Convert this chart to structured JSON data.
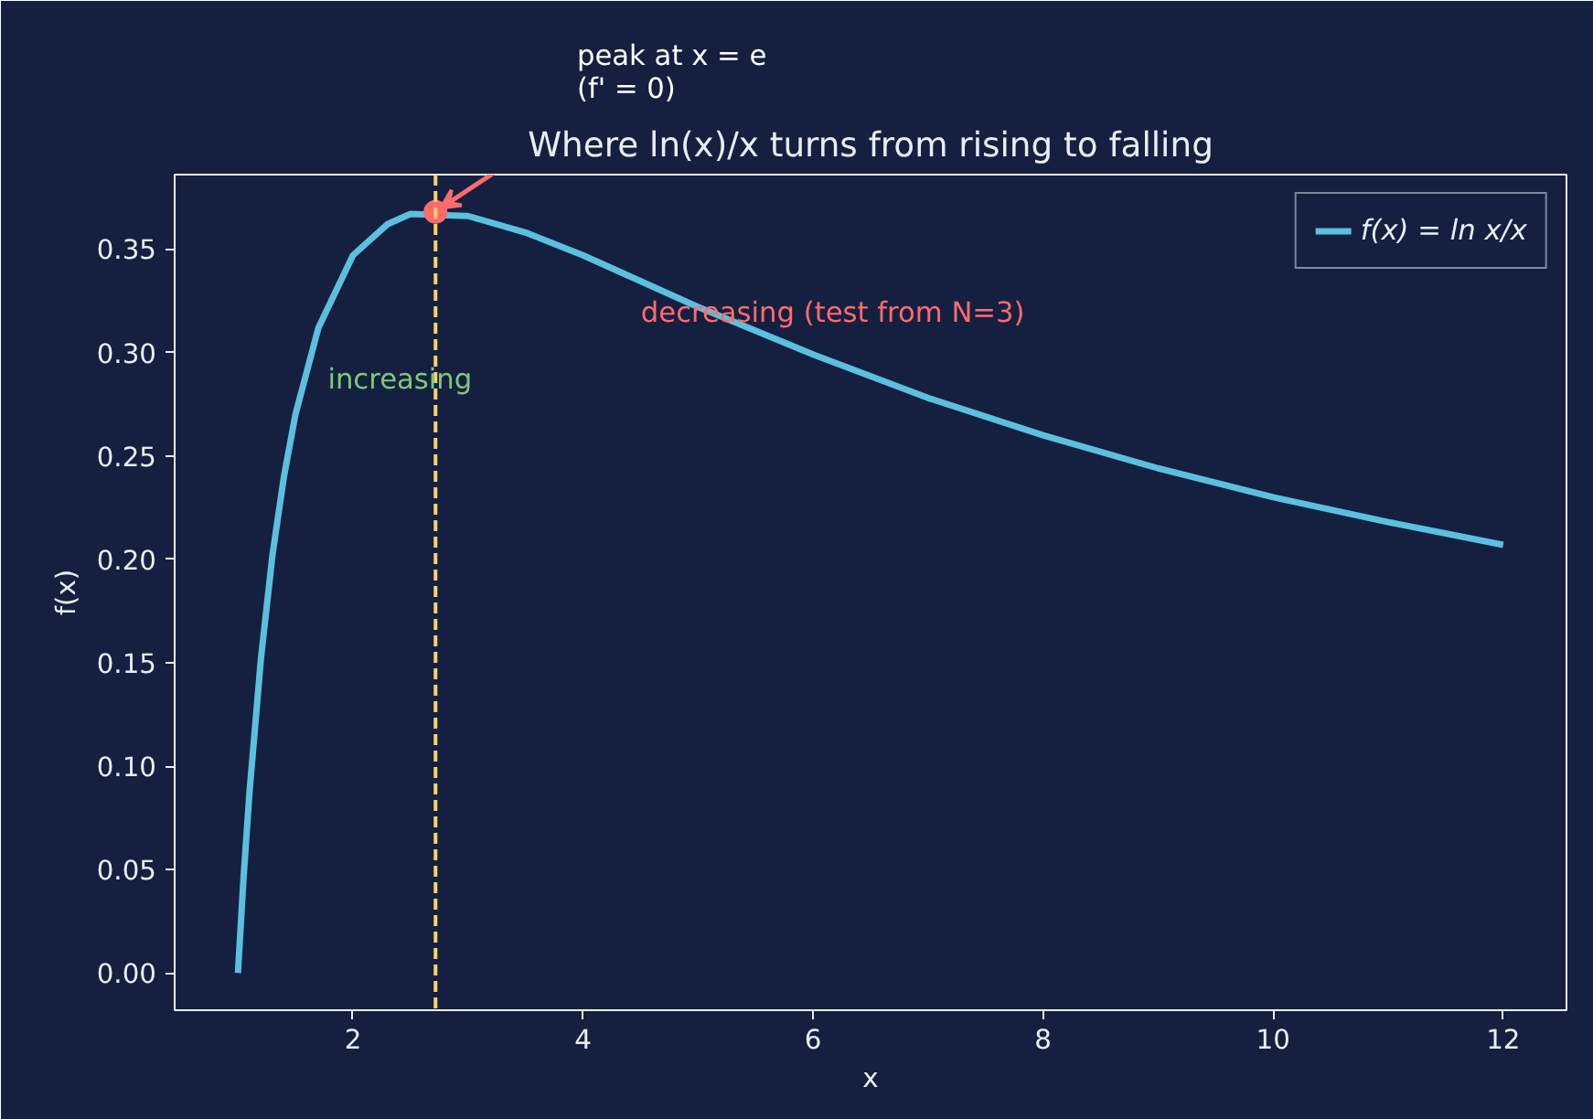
{
  "chart_data": {
    "type": "line",
    "title": "Where ln(x)/x turns from rising to falling",
    "xlabel": "x",
    "ylabel": "f(x)",
    "xlim": [
      0.45,
      12.55
    ],
    "ylim": [
      -0.018,
      0.386
    ],
    "xticks": [
      2,
      4,
      6,
      8,
      10,
      12
    ],
    "yticks": [
      {
        "value": 0,
        "label": "0.00"
      },
      {
        "value": 0.05,
        "label": "0.05"
      },
      {
        "value": 0.1,
        "label": "0.10"
      },
      {
        "value": 0.15,
        "label": "0.15"
      },
      {
        "value": 0.2,
        "label": "0.20"
      },
      {
        "value": 0.25,
        "label": "0.25"
      },
      {
        "value": 0.3,
        "label": "0.30"
      },
      {
        "value": 0.35,
        "label": "0.35"
      }
    ],
    "grid": false,
    "legend": "top right",
    "line_style": "solid",
    "series": [
      {
        "name": "f(x) = ln x/x",
        "color": "#5bc0de",
        "marker": "none",
        "x": [
          1,
          1.05,
          1.1,
          1.2,
          1.3,
          1.4,
          1.5,
          1.7,
          2,
          2.3,
          2.5,
          3,
          3.5,
          4,
          5,
          6,
          7,
          8,
          9,
          10,
          11,
          12
        ],
        "values": [
          0,
          0.047,
          0.087,
          0.152,
          0.202,
          0.24,
          0.27,
          0.312,
          0.347,
          0.362,
          0.367,
          0.366,
          0.358,
          0.347,
          0.322,
          0.299,
          0.278,
          0.26,
          0.244,
          0.23,
          0.218,
          0.207
        ]
      },
      {
        "type": "scatter",
        "color": "#ff6b6b",
        "marker": "circle",
        "x": [
          2.718
        ],
        "values": [
          0.368
        ]
      }
    ],
    "ref_lines": [
      {
        "axis": "x",
        "value": 2.718,
        "color": "#ffd166",
        "line_style": "dashed"
      }
    ],
    "annotations": [
      {
        "text": "peak at x = e\n(f' = 0)",
        "x": 2.718,
        "y": 0.368
      },
      "increasing",
      "decreasing (test from N=3)"
    ]
  }
}
